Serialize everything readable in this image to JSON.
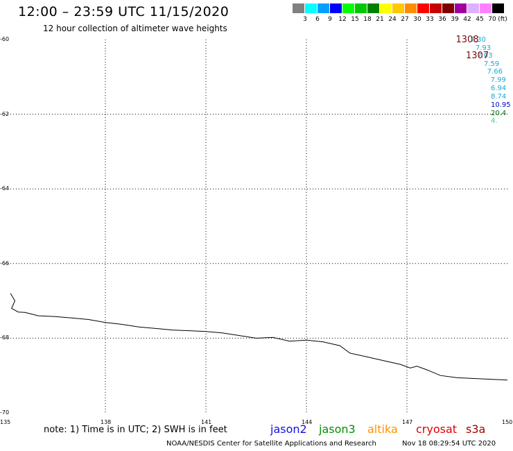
{
  "header": {
    "title": "12:00 – 23:59 UTC 11/15/2020",
    "subtitle": "12 hour collection of altimeter wave heights"
  },
  "legend": {
    "unit": "(ft)",
    "bins": [
      {
        "label": "3",
        "color": "#808080"
      },
      {
        "label": "6",
        "color": "#00ffff"
      },
      {
        "label": "9",
        "color": "#00a0ff"
      },
      {
        "label": "12",
        "color": "#0000ff"
      },
      {
        "label": "15",
        "color": "#00ff00"
      },
      {
        "label": "18",
        "color": "#00c800"
      },
      {
        "label": "21",
        "color": "#008000"
      },
      {
        "label": "24",
        "color": "#ffff00"
      },
      {
        "label": "27",
        "color": "#ffc800"
      },
      {
        "label": "30",
        "color": "#ff8c00"
      },
      {
        "label": "33",
        "color": "#ff0000"
      },
      {
        "label": "36",
        "color": "#c80000"
      },
      {
        "label": "39",
        "color": "#800000"
      },
      {
        "label": "42",
        "color": "#a000a0"
      },
      {
        "label": "45",
        "color": "#e0b0ff"
      },
      {
        "label": "70",
        "color": "#ff80ff"
      },
      {
        "label": "",
        "color": "#000000"
      }
    ]
  },
  "map": {
    "lat_labels": [
      "-60",
      "-62",
      "-64",
      "-66",
      "-68",
      "-70"
    ],
    "lon_labels": [
      "135",
      "138",
      "141",
      "144",
      "147",
      "150"
    ],
    "lon_range": [
      135,
      150
    ],
    "lat_range": [
      -70,
      -60
    ],
    "coastline": [
      [
        135.17,
        -66.8
      ],
      [
        135.3,
        -67.0
      ],
      [
        135.2,
        -67.2
      ],
      [
        135.4,
        -67.3
      ],
      [
        135.6,
        -67.31
      ],
      [
        136.0,
        -67.4
      ],
      [
        136.5,
        -67.42
      ],
      [
        137.0,
        -67.46
      ],
      [
        137.5,
        -67.5
      ],
      [
        138.0,
        -67.58
      ],
      [
        138.5,
        -67.63
      ],
      [
        139.0,
        -67.7
      ],
      [
        139.5,
        -67.74
      ],
      [
        140.0,
        -67.78
      ],
      [
        140.5,
        -67.8
      ],
      [
        141.0,
        -67.82
      ],
      [
        141.5,
        -67.86
      ],
      [
        142.0,
        -67.93
      ],
      [
        142.5,
        -68.0
      ],
      [
        143.0,
        -67.98
      ],
      [
        143.5,
        -68.08
      ],
      [
        144.0,
        -68.05
      ],
      [
        144.5,
        -68.1
      ],
      [
        145.0,
        -68.2
      ],
      [
        145.3,
        -68.4
      ],
      [
        145.8,
        -68.5
      ],
      [
        146.3,
        -68.6
      ],
      [
        146.8,
        -68.7
      ],
      [
        147.1,
        -68.8
      ],
      [
        147.3,
        -68.75
      ],
      [
        147.6,
        -68.85
      ],
      [
        148.0,
        -69.0
      ],
      [
        148.5,
        -69.06
      ],
      [
        149.0,
        -69.08
      ],
      [
        149.5,
        -69.1
      ],
      [
        150.0,
        -69.12
      ]
    ]
  },
  "observations": [
    {
      "value": "7.30",
      "lon": 149.35,
      "lat": -60.02,
      "color": "#1aa8d8"
    },
    {
      "value": "7.93",
      "lon": 149.5,
      "lat": -60.24,
      "color": "#1aa8d8"
    },
    {
      "value": "7.03",
      "lon": 149.55,
      "lat": -60.44,
      "color": "#1aa8d8"
    },
    {
      "value": "7.59",
      "lon": 149.75,
      "lat": -60.66,
      "color": "#1aa8d8"
    },
    {
      "value": "7.66",
      "lon": 149.85,
      "lat": -60.88,
      "color": "#1aa8d8"
    },
    {
      "value": "7.99",
      "lon": 149.95,
      "lat": -61.1,
      "color": "#1aa8d8"
    },
    {
      "value": "6.94",
      "lon": 150.05,
      "lat": -61.32,
      "color": "#1aa8d8"
    },
    {
      "value": "8.74",
      "lon": 150.1,
      "lat": -61.54,
      "color": "#1aa8d8"
    },
    {
      "value": "10.95",
      "lon": 150.2,
      "lat": -61.76,
      "color": "#0000c8"
    },
    {
      "value": "20.4",
      "lon": 150.3,
      "lat": -61.98,
      "color": "#007000"
    },
    {
      "value": "4.",
      "lon": 150.4,
      "lat": -62.2,
      "color": "#20d8a0"
    }
  ],
  "passes": [
    {
      "label": "1308",
      "lon": 148.5,
      "lat": -60.0
    },
    {
      "label": "1307",
      "lon": 148.8,
      "lat": -60.42
    }
  ],
  "footer": {
    "note": "note: 1) Time is in UTC; 2) SWH is in feet",
    "missions": [
      {
        "name": "jason2",
        "color": "#1010e0"
      },
      {
        "name": "jason3",
        "color": "#009000"
      },
      {
        "name": "altika",
        "color": "#ff9000"
      },
      {
        "name": "cryosat",
        "color": "#e00000"
      },
      {
        "name": "s3a",
        "color": "#a00000"
      }
    ],
    "credit": "NOAA/NESDIS Center for Satellite Applications and Research",
    "timestamp": "Nov 18 08:29:54 UTC 2020"
  }
}
